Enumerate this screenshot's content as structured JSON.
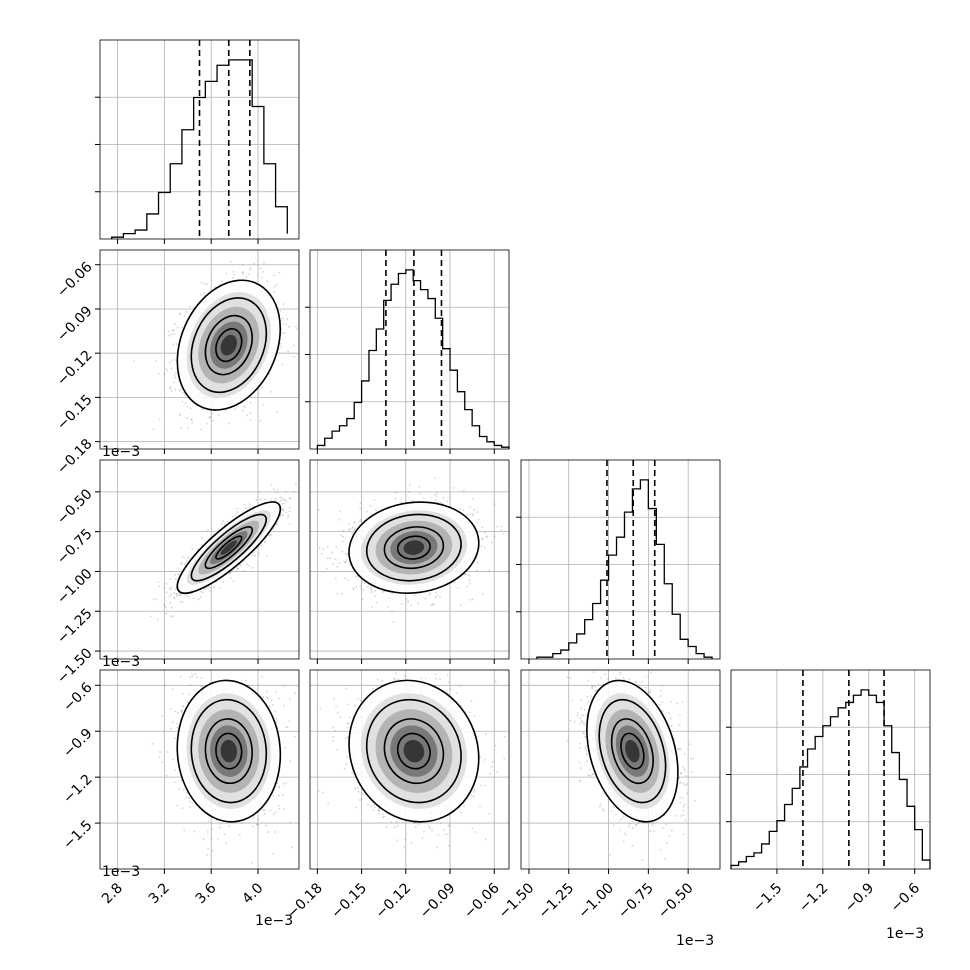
{
  "chart_data": {
    "type": "corner",
    "grid": true,
    "colors": {
      "hist": "#000000",
      "scatter": "#888888",
      "quantile": "#000000",
      "grid": "#b0b0b0"
    },
    "quantile_style": "dashed",
    "parameters": [
      {
        "range": [
          2.65,
          4.35
        ],
        "multiplier": "1e-3",
        "ticks": [
          2.8,
          3.2,
          3.6,
          4.0
        ],
        "tick_labels": [
          "2.8",
          "3.2",
          "3.6",
          "4.0"
        ],
        "mean": 3.75,
        "std": 0.2,
        "quantiles": [
          3.5,
          3.75,
          3.93
        ],
        "hist_edges": [
          2.75,
          2.85,
          2.95,
          3.05,
          3.15,
          3.25,
          3.35,
          3.45,
          3.55,
          3.65,
          3.75,
          3.85,
          3.95,
          4.05,
          4.15,
          4.25
        ],
        "hist_counts": [
          1,
          3,
          5,
          14,
          26,
          42,
          61,
          79,
          88,
          97,
          100,
          100,
          74,
          42,
          18,
          3
        ]
      },
      {
        "range": [
          -0.185,
          -0.05
        ],
        "multiplier": "1e-3",
        "ticks": [
          -0.18,
          -0.15,
          -0.12,
          -0.09,
          -0.06
        ],
        "tick_labels": [
          "-0.18",
          "-0.15",
          "-0.12",
          "-0.09",
          "-0.06"
        ],
        "mean": -0.1145,
        "std": 0.02,
        "quantiles": [
          -0.1335,
          -0.1145,
          -0.0958
        ],
        "hist_edges": [
          -0.18,
          -0.175,
          -0.17,
          -0.165,
          -0.16,
          -0.155,
          -0.15,
          -0.145,
          -0.14,
          -0.135,
          -0.13,
          -0.125,
          -0.12,
          -0.115,
          -0.11,
          -0.105,
          -0.1,
          -0.095,
          -0.09,
          -0.085,
          -0.08,
          -0.075,
          -0.07,
          -0.065,
          -0.06,
          -0.055,
          -0.05
        ],
        "hist_counts": [
          2,
          6,
          10,
          13,
          17,
          26,
          38,
          55,
          67,
          83,
          92,
          98,
          100,
          94,
          89,
          84,
          73,
          56,
          44,
          32,
          22,
          13,
          7,
          4,
          2,
          1
        ]
      },
      {
        "range": [
          -1.55,
          -0.3
        ],
        "multiplier": "1e-3",
        "ticks": [
          -1.5,
          -1.25,
          -1.0,
          -0.75,
          -0.5
        ],
        "tick_labels": [
          "-1.50",
          "-1.25",
          "-1.00",
          "-0.75",
          "-0.50"
        ],
        "mean": -0.85,
        "std": 0.13,
        "quantiles": [
          -1.01,
          -0.845,
          -0.71
        ],
        "hist_edges": [
          -1.45,
          -1.4,
          -1.35,
          -1.3,
          -1.25,
          -1.2,
          -1.15,
          -1.1,
          -1.05,
          -1.0,
          -0.95,
          -0.9,
          -0.85,
          -0.8,
          -0.75,
          -0.7,
          -0.65,
          -0.6,
          -0.55,
          -0.5,
          -0.45,
          -0.4,
          -0.35
        ],
        "hist_counts": [
          1,
          1,
          3,
          5,
          9,
          14,
          22,
          31,
          44,
          58,
          68,
          82,
          95,
          100,
          84,
          64,
          42,
          25,
          11,
          7,
          3,
          1
        ]
      },
      {
        "range": [
          -1.8,
          -0.5
        ],
        "multiplier": "1e-3",
        "ticks": [
          -1.5,
          -1.2,
          -0.9,
          -0.6
        ],
        "tick_labels": [
          "-1.5",
          "-1.2",
          "-0.9",
          "-0.6"
        ],
        "mean": -1.03,
        "std": 0.21,
        "quantiles": [
          -1.33,
          -1.03,
          -0.8
        ],
        "hist_edges": [
          -1.8,
          -1.75,
          -1.7,
          -1.65,
          -1.6,
          -1.55,
          -1.5,
          -1.45,
          -1.4,
          -1.35,
          -1.3,
          -1.25,
          -1.2,
          -1.15,
          -1.1,
          -1.05,
          -1.0,
          -0.95,
          -0.9,
          -0.85,
          -0.8,
          -0.75,
          -0.7,
          -0.65,
          -0.6,
          -0.55,
          -0.5
        ],
        "hist_counts": [
          2,
          4,
          7,
          9,
          14,
          21,
          27,
          36,
          45,
          57,
          67,
          74,
          80,
          85,
          90,
          93,
          97,
          100,
          97,
          93,
          80,
          65,
          50,
          35,
          22,
          5
        ]
      }
    ],
    "correlations": [
      {
        "row": 1,
        "col": 0,
        "rho": 0.25
      },
      {
        "row": 2,
        "col": 0,
        "rho": 0.85
      },
      {
        "row": 2,
        "col": 1,
        "rho": 0.1
      },
      {
        "row": 3,
        "col": 0,
        "rho": -0.05
      },
      {
        "row": 3,
        "col": 1,
        "rho": -0.1
      },
      {
        "row": 3,
        "col": 2,
        "rho": -0.3
      }
    ]
  }
}
